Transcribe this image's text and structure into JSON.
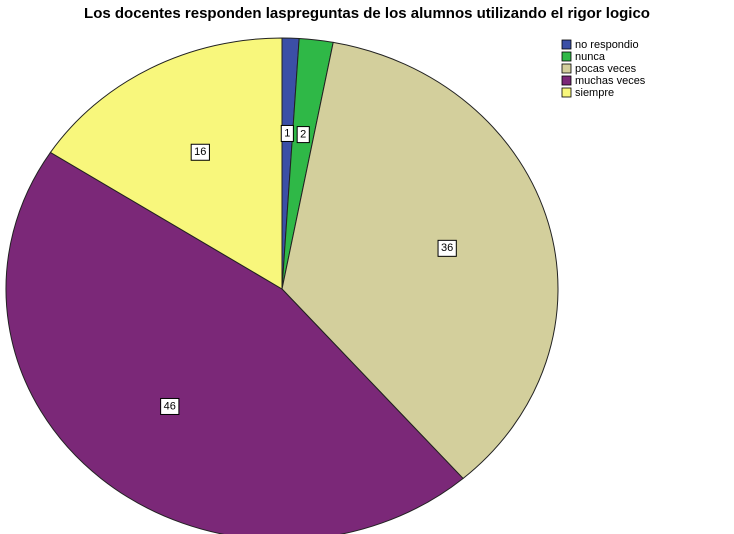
{
  "chart_data": {
    "type": "pie",
    "title": "Los docentes responden laspreguntas de los alumnos utilizando el rigor logico",
    "categories": [
      "no respondio",
      "nunca",
      "pocas veces",
      "muchas veces",
      "siempre"
    ],
    "values": [
      1,
      2,
      36,
      46,
      16
    ],
    "colors": [
      "#3b4fa6",
      "#2fb847",
      "#d3cf9c",
      "#7b2878",
      "#f8f77c"
    ],
    "legend": "top-right"
  }
}
